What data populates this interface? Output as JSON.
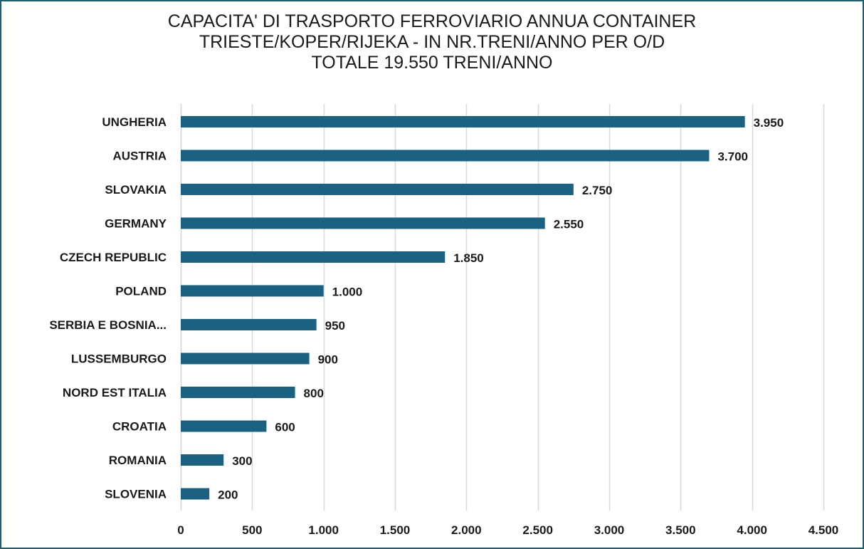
{
  "chart_data": {
    "type": "bar",
    "orientation": "horizontal",
    "title_lines": [
      "CAPACITA' DI TRASPORTO FERROVIARIO ANNUA CONTAINER",
      "TRIESTE/KOPER/RIJEKA - IN NR.TRENI/ANNO PER O/D",
      "TOTALE 19.550 TRENI/ANNO"
    ],
    "categories": [
      "UNGHERIA",
      "AUSTRIA",
      "SLOVAKIA",
      "GERMANY",
      "CZECH REPUBLIC",
      "POLAND",
      "SERBIA E BOSNIA...",
      "LUSSEMBURGO",
      "NORD EST ITALIA",
      "CROATIA",
      "ROMANIA",
      "SLOVENIA"
    ],
    "values": [
      3950,
      3700,
      2750,
      2550,
      1850,
      1000,
      950,
      900,
      800,
      600,
      300,
      200
    ],
    "value_labels": [
      "3.950",
      "3.700",
      "2.750",
      "2.550",
      "1.850",
      "1.000",
      "950",
      "900",
      "800",
      "600",
      "300",
      "200"
    ],
    "xlim": [
      0,
      4500
    ],
    "x_ticks": [
      0,
      500,
      1000,
      1500,
      2000,
      2500,
      3000,
      3500,
      4000,
      4500
    ],
    "x_tick_labels": [
      "0",
      "500",
      "1.000",
      "1.500",
      "2.000",
      "2.500",
      "3.000",
      "3.500",
      "4.000",
      "4.500"
    ],
    "grid": "vertical",
    "bar_color": "#1b6182",
    "border_color": "#1f5f73"
  }
}
